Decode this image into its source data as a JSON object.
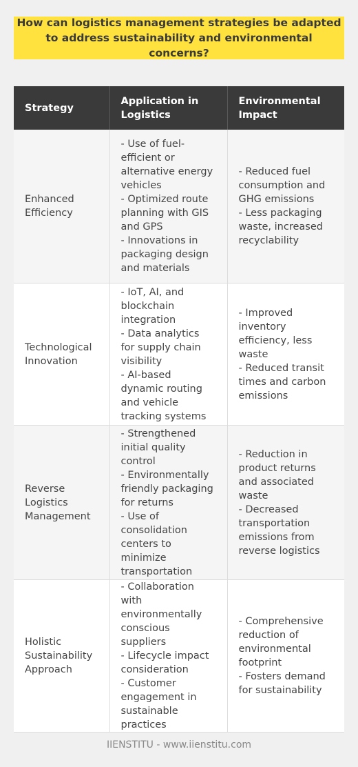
{
  "title": "How can logistics management strategies be adapted to address sustainability and environmental concerns?",
  "table": {
    "headers": [
      "Strategy",
      "Application in Logistics",
      "Environmental Impact"
    ],
    "rows": [
      {
        "strategy": "Enhanced Efficiency",
        "application": [
          "- Use of fuel-efficient or alternative energy vehicles",
          "- Optimized route planning with GIS and GPS",
          "- Innovations in packaging design and materials"
        ],
        "impact": [
          "- Reduced fuel consumption and GHG emissions",
          "- Less packaging waste, increased recyclability"
        ]
      },
      {
        "strategy": "Technological Innovation",
        "application": [
          "- IoT, AI, and blockchain integration",
          "- Data analytics for supply chain visibility",
          "- AI-based dynamic routing and vehicle tracking systems"
        ],
        "impact": [
          "- Improved inventory efficiency, less waste",
          "- Reduced transit times and carbon emissions"
        ]
      },
      {
        "strategy": "Reverse Logistics Management",
        "application": [
          "- Strengthened initial quality control",
          "- Environmentally friendly packaging for returns",
          "- Use of consolidation centers to minimize transportation"
        ],
        "impact": [
          "- Reduction in product returns and associated waste",
          "- Decreased transportation emissions from reverse logistics"
        ]
      },
      {
        "strategy": "Holistic Sustainability Approach",
        "application": [
          "- Collaboration with environmentally conscious suppliers",
          "- Lifecycle impact consideration",
          "- Customer engagement in sustainable practices"
        ],
        "impact": [
          "- Comprehensive reduction of environmental footprint",
          "- Fosters demand for sustainability"
        ]
      }
    ]
  },
  "footer": "IIENSTITU - www.iienstitu.com",
  "colors": {
    "title_bg": "#ffe23d",
    "header_bg": "#3a3a3a",
    "page_bg": "#f0f0f0"
  }
}
